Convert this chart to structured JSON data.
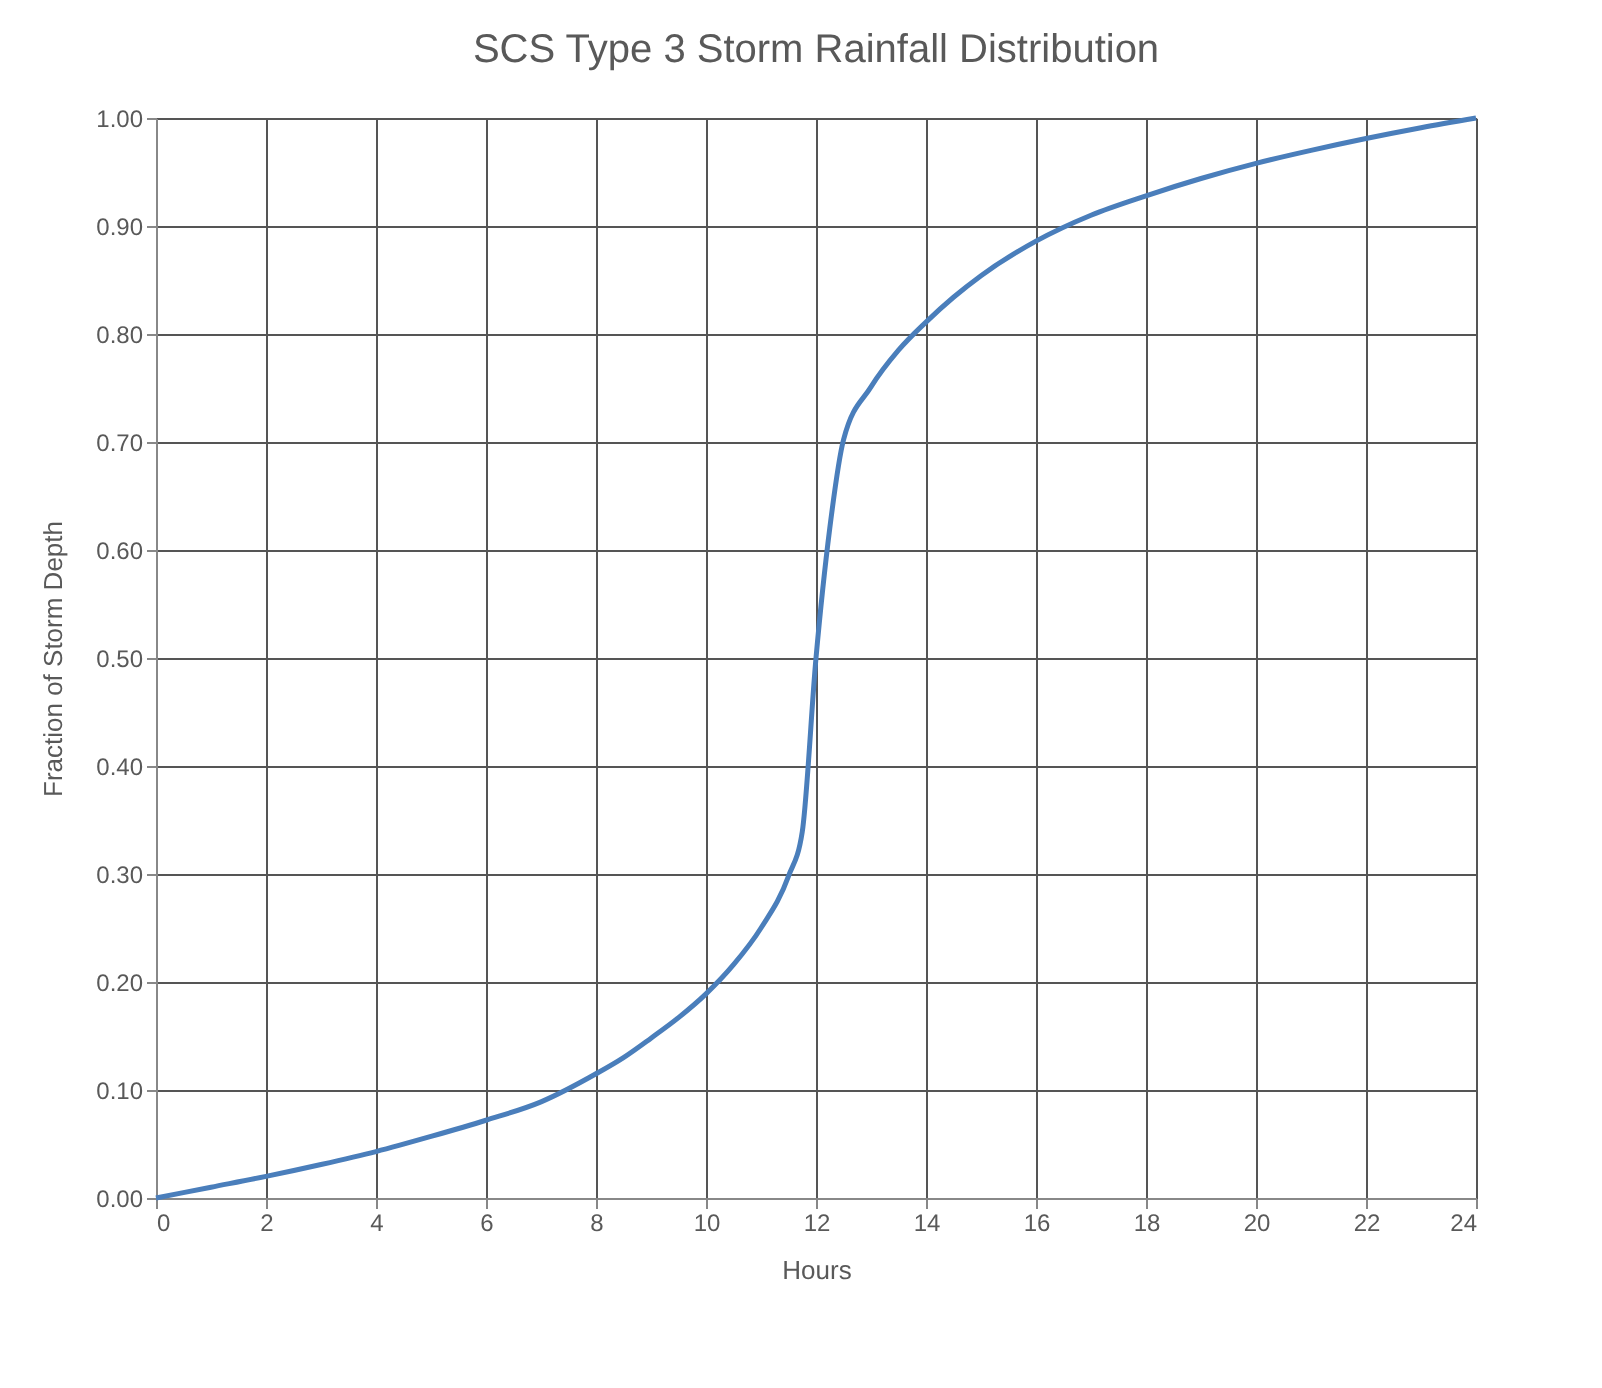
{
  "chart_data": {
    "type": "line",
    "title": "SCS Type 3 Storm Rainfall Distribution",
    "xlabel": "Hours",
    "ylabel": "Fraction of Storm Depth",
    "x": [
      0,
      1,
      2,
      3,
      4,
      5,
      6,
      7,
      8,
      8.5,
      9,
      9.5,
      10,
      10.5,
      11,
      11.5,
      11.75,
      12,
      12.25,
      12.5,
      13,
      13.5,
      14,
      14.5,
      15,
      16,
      17,
      18,
      19,
      20,
      21,
      22,
      23,
      24
    ],
    "series": [
      {
        "color": "#4a7ebb",
        "values": [
          0,
          0.01,
          0.02,
          0.031,
          0.043,
          0.057,
          0.072,
          0.089,
          0.115,
          0.13,
          0.148,
          0.167,
          0.189,
          0.216,
          0.25,
          0.298,
          0.339,
          0.5,
          0.62,
          0.702,
          0.751,
          0.785,
          0.811,
          0.834,
          0.854,
          0.886,
          0.91,
          0.928,
          0.944,
          0.958,
          0.97,
          0.981,
          0.991,
          1.0
        ]
      }
    ],
    "xlim": [
      0,
      24
    ],
    "xticks": [
      0,
      2,
      4,
      6,
      8,
      10,
      12,
      14,
      16,
      18,
      20,
      22,
      24
    ],
    "ylim": [
      0,
      1
    ],
    "yticks": [
      {
        "value": 0,
        "label": "0.00"
      },
      {
        "value": 0.1,
        "label": "0.10"
      },
      {
        "value": 0.2,
        "label": "0.20"
      },
      {
        "value": 0.3,
        "label": "0.30"
      },
      {
        "value": 0.4,
        "label": "0.40"
      },
      {
        "value": 0.5,
        "label": "0.50"
      },
      {
        "value": 0.6,
        "label": "0.60"
      },
      {
        "value": 0.7,
        "label": "0.70"
      },
      {
        "value": 0.8,
        "label": "0.80"
      },
      {
        "value": 0.9,
        "label": "0.90"
      },
      {
        "value": 1,
        "label": "1.00"
      }
    ],
    "grid": true,
    "marker": "none",
    "line_style": "solid"
  }
}
